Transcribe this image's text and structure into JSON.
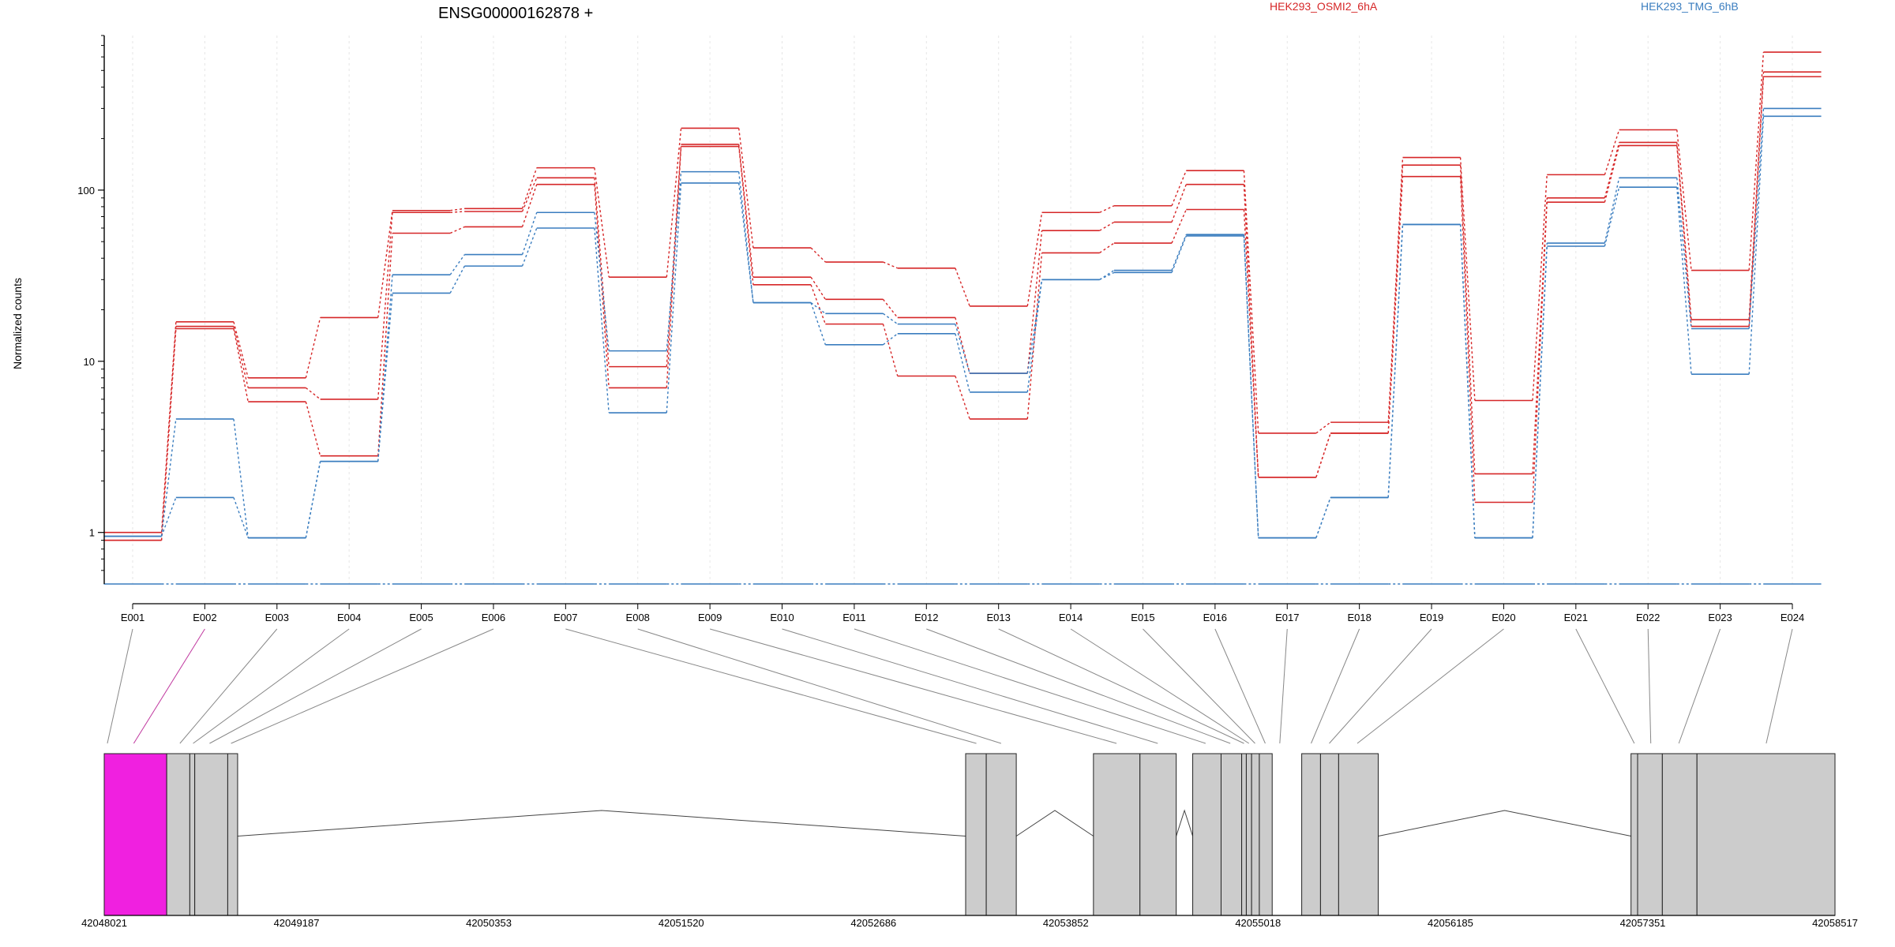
{
  "chart_data": {
    "type": "line",
    "title": "ENSG00000162878 +",
    "ylabel": "Normalized counts",
    "xlabel": "",
    "y_scale": "log",
    "ylim": [
      0.5,
      800
    ],
    "y_ticks": [
      "1",
      "10",
      "100"
    ],
    "grid": "vertical gridlines at exon centers",
    "legend_placement": "top, horizontal",
    "categories": [
      "E001",
      "E002",
      "E003",
      "E004",
      "E005",
      "E006",
      "E007",
      "E008",
      "E009",
      "E010",
      "E011",
      "E012",
      "E013",
      "E014",
      "E015",
      "E016",
      "E017",
      "E018",
      "E019",
      "E020",
      "E021",
      "E022",
      "E023",
      "E024"
    ],
    "colors": {
      "HEK293_OSMI2_6hA": "#d62728",
      "HEK293_TMG_6hB": "#3a7dbf"
    },
    "series": [
      {
        "group": "HEK293_OSMI2_6hA",
        "values": [
          1.0,
          17.0,
          8.0,
          18.0,
          76.0,
          78.0,
          135.0,
          31.0,
          230.0,
          46.0,
          38.0,
          35.0,
          21.0,
          74.0,
          81.0,
          130.0,
          3.8,
          4.4,
          155.0,
          5.9,
          123.0,
          225.0,
          34.0,
          640.0
        ]
      },
      {
        "group": "HEK293_OSMI2_6hA",
        "values": [
          0.9,
          16.0,
          7.0,
          6.0,
          74.0,
          75.0,
          118.0,
          9.3,
          185.0,
          31.0,
          23.0,
          18.0,
          8.5,
          58.0,
          65.0,
          108.0,
          2.1,
          3.8,
          140.0,
          2.2,
          90.0,
          190.0,
          17.5,
          490.0
        ]
      },
      {
        "group": "HEK293_OSMI2_6hA",
        "values": [
          0.9,
          15.5,
          5.8,
          2.8,
          56.0,
          61.0,
          108.0,
          7.0,
          180.0,
          28.0,
          16.5,
          8.2,
          4.6,
          43.0,
          49.0,
          77.0,
          2.1,
          3.8,
          120.0,
          1.5,
          85.0,
          182.0,
          16.0,
          460.0
        ]
      },
      {
        "group": "HEK293_TMG_6hB",
        "values": [
          0.95,
          4.6,
          0.93,
          2.6,
          32.0,
          42.0,
          74.0,
          11.5,
          128.0,
          22.0,
          19.0,
          16.5,
          8.5,
          30.0,
          34.0,
          55.0,
          0.93,
          1.6,
          63.0,
          0.93,
          49.0,
          118.0,
          15.5,
          300.0
        ]
      },
      {
        "group": "HEK293_TMG_6hB",
        "values": [
          0.95,
          1.6,
          0.93,
          2.6,
          25.0,
          36.0,
          60.0,
          5.0,
          110.0,
          22.0,
          12.5,
          14.5,
          6.6,
          30.0,
          33.0,
          54.0,
          0.93,
          1.6,
          63.0,
          0.93,
          47.0,
          104.0,
          8.4,
          270.0
        ]
      },
      {
        "group": "HEK293_TMG_6hB",
        "values": [
          0.5,
          0.5,
          0.5,
          0.5,
          0.5,
          0.5,
          0.5,
          0.5,
          0.5,
          0.5,
          0.5,
          0.5,
          0.5,
          0.5,
          0.5,
          0.5,
          0.5,
          0.5,
          0.5,
          0.5,
          0.5,
          0.5,
          0.5,
          0.5
        ]
      }
    ],
    "legend": [
      "HEK293_OSMI2_6hA",
      "HEK293_TMG_6hB"
    ],
    "genome": {
      "coord_ticks": [
        42048021,
        42049187,
        42050353,
        42051520,
        42052686,
        42053852,
        42055018,
        42056185,
        42057351,
        42058517
      ],
      "coord_labels": [
        "42048021",
        "42049187",
        "42050353",
        "42051520",
        "42052686",
        "42053852",
        "42055018",
        "42056185",
        "42057351",
        "42058517"
      ],
      "gene_range": [
        42048021,
        42058517
      ],
      "blocks": [
        {
          "start": 42048021,
          "end": 42048400,
          "highlight": true
        },
        {
          "start": 42048400,
          "end": 42048540,
          "highlight": false
        },
        {
          "start": 42048540,
          "end": 42048570,
          "highlight": false
        },
        {
          "start": 42048570,
          "end": 42048770,
          "highlight": false
        },
        {
          "start": 42048770,
          "end": 42048830,
          "highlight": false
        },
        {
          "start": 42053245,
          "end": 42053370,
          "highlight": false
        },
        {
          "start": 42053370,
          "end": 42053552,
          "highlight": false
        },
        {
          "start": 42054020,
          "end": 42054302,
          "highlight": false
        },
        {
          "start": 42054302,
          "end": 42054522,
          "highlight": false
        },
        {
          "start": 42054622,
          "end": 42054794,
          "highlight": false
        },
        {
          "start": 42054794,
          "end": 42054919,
          "highlight": false
        },
        {
          "start": 42054919,
          "end": 42054947,
          "highlight": false
        },
        {
          "start": 42054947,
          "end": 42054979,
          "highlight": false
        },
        {
          "start": 42054979,
          "end": 42055026,
          "highlight": false
        },
        {
          "start": 42055026,
          "end": 42055104,
          "highlight": false
        },
        {
          "start": 42055283,
          "end": 42055397,
          "highlight": false
        },
        {
          "start": 42055397,
          "end": 42055507,
          "highlight": false
        },
        {
          "start": 42055507,
          "end": 42055747,
          "highlight": false
        },
        {
          "start": 42057280,
          "end": 42057320,
          "highlight": false
        },
        {
          "start": 42057320,
          "end": 42057470,
          "highlight": false
        },
        {
          "start": 42057470,
          "end": 42057680,
          "highlight": false
        },
        {
          "start": 42057680,
          "end": 42058517,
          "highlight": false
        }
      ],
      "introns": [
        {
          "from": 42048830,
          "to": 42053245
        },
        {
          "from": 42053552,
          "to": 42054020
        },
        {
          "from": 42054522,
          "to": 42054622
        },
        {
          "from": 42055747,
          "to": 42057280
        }
      ],
      "exon_positions": [
        42048040,
        42048200,
        42048480,
        42048560,
        42048660,
        42048790,
        42053310,
        42053460,
        42054160,
        42054410,
        42054700,
        42054850,
        42054933,
        42054963,
        42055000,
        42055062,
        42055150,
        42055340,
        42055450,
        42055620,
        42057300,
        42057400,
        42057570,
        42058100
      ]
    }
  }
}
